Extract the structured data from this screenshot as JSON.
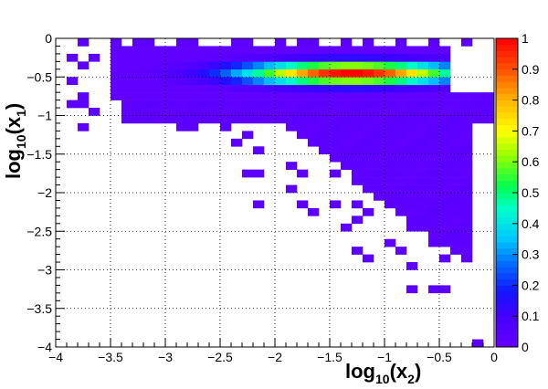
{
  "chart_data": {
    "type": "heatmap",
    "title": "",
    "xlabel": {
      "prefix": "log",
      "sub": "10",
      "open": "(x",
      "var_sub": "2",
      "close": ")"
    },
    "ylabel": {
      "prefix": "log",
      "sub": "10",
      "open": "(x",
      "var_sub": "1",
      "close": ")"
    },
    "xlim": [
      -4,
      0
    ],
    "ylim": [
      -4,
      0
    ],
    "zlim": [
      0,
      1
    ],
    "grid": true,
    "legend": "colorbar-right",
    "x_ticks": [
      "-4",
      "-3.5",
      "-3",
      "-2.5",
      "-2",
      "-1.5",
      "-1",
      "-0.5",
      "0"
    ],
    "y_ticks": [
      "0",
      "-0.5",
      "-1",
      "-1.5",
      "-2",
      "-2.5",
      "-3",
      "-3.5",
      "-4"
    ],
    "z_ticks": [
      "0",
      "0.1",
      "0.2",
      "0.3",
      "0.4",
      "0.5",
      "0.6",
      "0.7",
      "0.8",
      "0.9",
      "1"
    ],
    "bins": {
      "nx": 40,
      "ny": 40,
      "x_range": [
        -4,
        0
      ],
      "y_range": [
        -4,
        0
      ]
    },
    "band": {
      "y_center": -0.45,
      "y_sigma": 0.1,
      "x_center": -1.3,
      "x_sigma": 0.7,
      "x_extent": [
        -3.5,
        -0.4
      ],
      "peak": 1.0
    },
    "low_occupancy_region": "x >= -4 and y >= -0.7 - 1.0*(x+4) bounded to lower right triangle",
    "cells_low": [
      [
        -3.8,
        -0.1
      ],
      [
        -3.6,
        -0.3
      ],
      [
        -3.5,
        -0.1
      ],
      [
        -3.3,
        -0.1
      ],
      [
        -3.1,
        -0.1
      ],
      [
        -2.9,
        -0.1
      ],
      [
        -2.7,
        -0.1
      ],
      [
        -2.4,
        -0.1
      ],
      [
        -2.2,
        -0.1
      ],
      [
        -2.0,
        -0.1
      ],
      [
        -1.8,
        -0.1
      ],
      [
        -1.6,
        -0.1
      ],
      [
        -1.4,
        -0.1
      ],
      [
        -1.1,
        -0.1
      ],
      [
        -0.9,
        -0.1
      ],
      [
        -0.6,
        -0.1
      ],
      [
        -0.3,
        -0.1
      ],
      [
        -3.9,
        -0.3
      ],
      [
        -3.8,
        -0.4
      ],
      [
        -3.7,
        -0.4
      ],
      [
        -3.9,
        -0.6
      ],
      [
        -3.8,
        -0.7
      ],
      [
        -3.9,
        -0.9
      ],
      [
        -3.7,
        -0.9
      ],
      [
        -3.6,
        -1.0
      ],
      [
        -3.8,
        -1.1
      ],
      [
        -3.3,
        -1.0
      ],
      [
        -3.1,
        -1.0
      ],
      [
        -2.9,
        -1.1
      ],
      [
        -2.7,
        -1.1
      ],
      [
        -2.5,
        -1.1
      ],
      [
        -2.3,
        -1.2
      ],
      [
        -2.2,
        -1.3
      ],
      [
        -2.4,
        -1.4
      ],
      [
        -2.1,
        -1.5
      ],
      [
        -1.9,
        -1.1
      ],
      [
        -1.7,
        -1.1
      ],
      [
        -1.5,
        -1.1
      ],
      [
        -1.3,
        -1.1
      ],
      [
        -1.1,
        -1.1
      ],
      [
        -0.9,
        -1.1
      ],
      [
        -0.7,
        -1.1
      ],
      [
        -0.5,
        -1.1
      ],
      [
        -0.3,
        -1.0
      ],
      [
        -0.2,
        -0.9
      ],
      [
        -2.3,
        -1.7
      ],
      [
        -2.1,
        -1.8
      ],
      [
        -1.9,
        -1.6
      ],
      [
        -1.7,
        -1.7
      ],
      [
        -1.5,
        -1.8
      ],
      [
        -1.3,
        -1.7
      ],
      [
        -1.1,
        -1.8
      ],
      [
        -0.9,
        -1.7
      ],
      [
        -0.7,
        -1.8
      ],
      [
        -0.5,
        -1.7
      ],
      [
        -0.3,
        -1.6
      ],
      [
        -0.2,
        -1.4
      ],
      [
        -2.1,
        -2.1
      ],
      [
        -1.9,
        -2.0
      ],
      [
        -1.7,
        -2.1
      ],
      [
        -1.5,
        -2.1
      ],
      [
        -1.3,
        -2.1
      ],
      [
        -1.1,
        -2.2
      ],
      [
        -0.9,
        -2.1
      ],
      [
        -0.7,
        -2.2
      ],
      [
        -0.5,
        -2.1
      ],
      [
        -0.3,
        -2.0
      ],
      [
        -0.2,
        -2.0
      ],
      [
        -1.6,
        -2.3
      ],
      [
        -1.4,
        -2.5
      ],
      [
        -1.2,
        -2.4
      ],
      [
        -1.0,
        -2.6
      ],
      [
        -0.8,
        -2.5
      ],
      [
        -0.6,
        -2.6
      ],
      [
        -0.4,
        -2.5
      ],
      [
        -0.3,
        -2.3
      ],
      [
        -1.3,
        -2.8
      ],
      [
        -1.1,
        -2.9
      ],
      [
        -0.9,
        -2.8
      ],
      [
        -0.7,
        -3.0
      ],
      [
        -0.5,
        -2.9
      ],
      [
        -0.3,
        -2.8
      ],
      [
        -0.8,
        -3.2
      ],
      [
        -0.6,
        -3.2
      ],
      [
        -0.5,
        -3.3
      ],
      [
        -0.15,
        -3.95
      ]
    ]
  }
}
